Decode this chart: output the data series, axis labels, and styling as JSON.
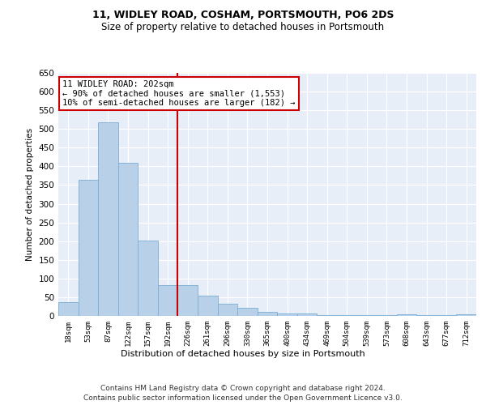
{
  "title": "11, WIDLEY ROAD, COSHAM, PORTSMOUTH, PO6 2DS",
  "subtitle": "Size of property relative to detached houses in Portsmouth",
  "xlabel": "Distribution of detached houses by size in Portsmouth",
  "ylabel": "Number of detached properties",
  "categories": [
    "18sqm",
    "53sqm",
    "87sqm",
    "122sqm",
    "157sqm",
    "192sqm",
    "226sqm",
    "261sqm",
    "296sqm",
    "330sqm",
    "365sqm",
    "400sqm",
    "434sqm",
    "469sqm",
    "504sqm",
    "539sqm",
    "573sqm",
    "608sqm",
    "643sqm",
    "677sqm",
    "712sqm"
  ],
  "values": [
    37,
    365,
    518,
    410,
    202,
    82,
    82,
    55,
    33,
    22,
    10,
    7,
    7,
    2,
    2,
    2,
    2,
    5,
    2,
    2,
    5
  ],
  "bar_color": "#b8d0e8",
  "bar_edge_color": "#7aaed6",
  "vline_x": 5.5,
  "vline_color": "#cc0000",
  "annotation_text": "11 WIDLEY ROAD: 202sqm\n← 90% of detached houses are smaller (1,553)\n10% of semi-detached houses are larger (182) →",
  "annotation_box_color": "#ffffff",
  "annotation_box_edge": "#cc0000",
  "footer_line1": "Contains HM Land Registry data © Crown copyright and database right 2024.",
  "footer_line2": "Contains public sector information licensed under the Open Government Licence v3.0.",
  "ylim": [
    0,
    650
  ],
  "yticks": [
    0,
    50,
    100,
    150,
    200,
    250,
    300,
    350,
    400,
    450,
    500,
    550,
    600,
    650
  ],
  "background_color": "#e8eef8",
  "grid_color": "#ffffff",
  "title_fontsize": 9,
  "subtitle_fontsize": 8.5
}
